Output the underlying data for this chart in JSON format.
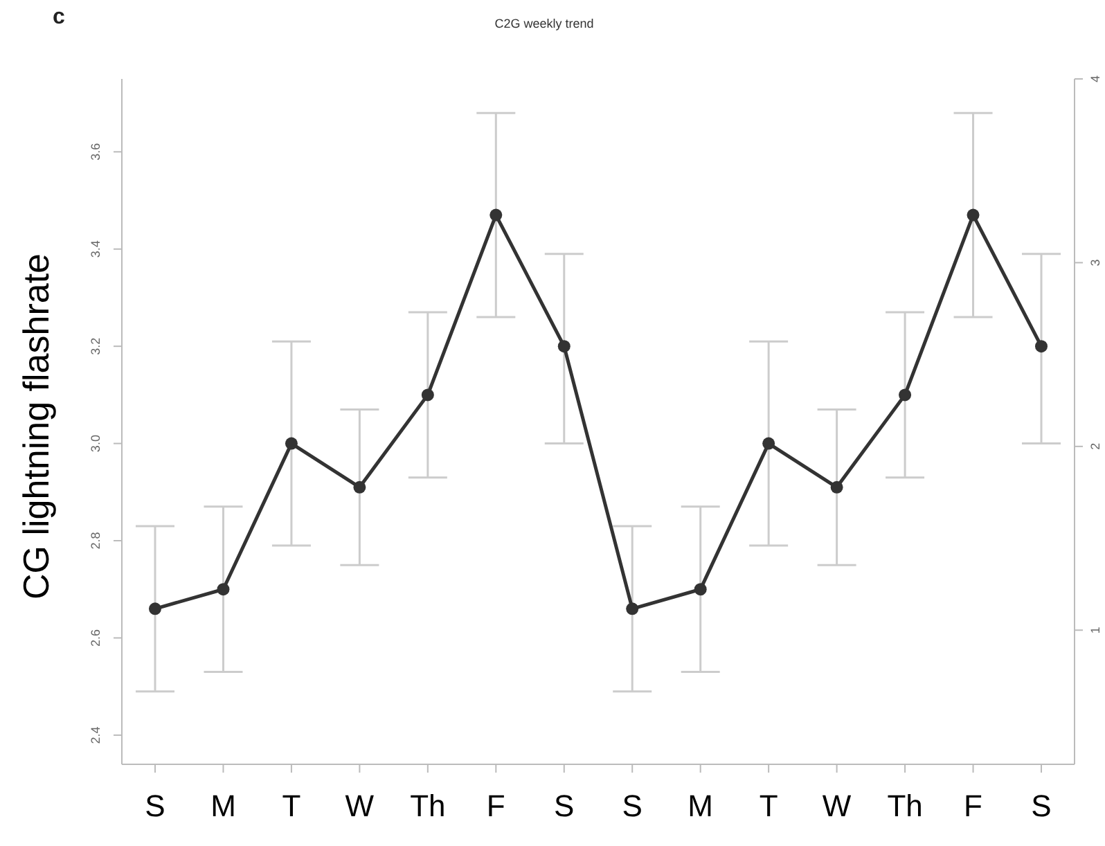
{
  "chart_data": {
    "type": "line",
    "title": "C2G weekly trend",
    "ylabel": "CG lightning flashrate",
    "annotations": [
      "c"
    ],
    "categories": [
      "S",
      "M",
      "T",
      "W",
      "Th",
      "F",
      "S",
      "S",
      "M",
      "T",
      "W",
      "Th",
      "F",
      "S"
    ],
    "series": [
      {
        "color": "#333333",
        "values": [
          2.66,
          2.7,
          3.0,
          2.91,
          3.1,
          3.47,
          3.2,
          2.66,
          2.7,
          3.0,
          2.91,
          3.1,
          3.47,
          3.2
        ],
        "errors": [
          [
            2.49,
            2.83
          ],
          [
            2.53,
            2.87
          ],
          [
            2.79,
            3.21
          ],
          [
            2.75,
            3.07
          ],
          [
            2.93,
            3.27
          ],
          [
            3.26,
            3.68
          ],
          [
            3.0,
            3.39
          ],
          [
            2.49,
            2.83
          ],
          [
            2.53,
            2.87
          ],
          [
            2.79,
            3.21
          ],
          [
            2.75,
            3.07
          ],
          [
            2.93,
            3.27
          ],
          [
            3.26,
            3.68
          ],
          [
            3.0,
            3.39
          ]
        ]
      }
    ],
    "ylim": [
      2.34,
      3.75
    ],
    "yticks": [
      2.4,
      2.6,
      2.8,
      {
        "value": 3,
        "label": "3.0"
      },
      3.2,
      3.4,
      3.6
    ],
    "y2lim": [
      0.27,
      4
    ],
    "y2ticks": [
      1,
      2,
      3,
      4
    ],
    "marker": "circle",
    "line_style": "solid"
  }
}
